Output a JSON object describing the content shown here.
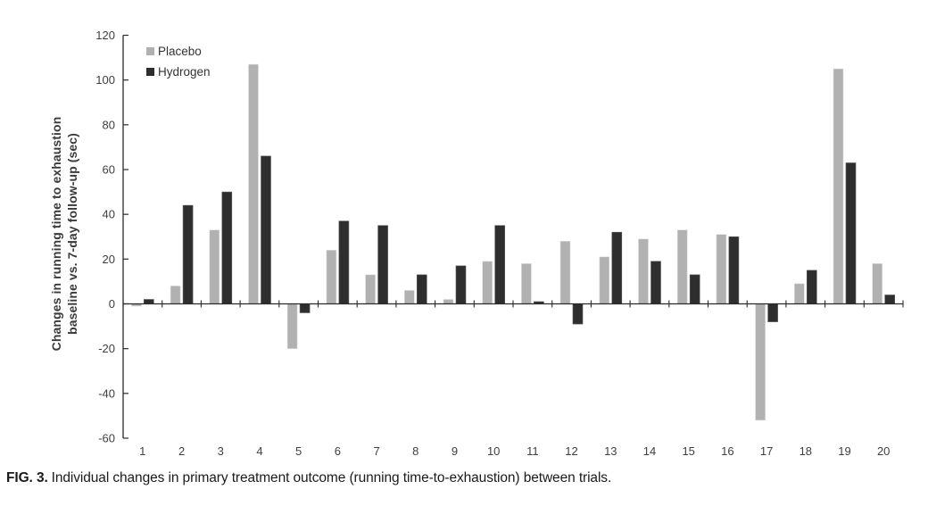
{
  "figure": {
    "caption_label": "FIG. 3.",
    "caption_text": "Individual changes in primary treatment outcome (running time-to-exhaustion) between trials."
  },
  "chart_data": {
    "type": "bar",
    "title": "",
    "xlabel": "",
    "ylabel": "Changes in running time to exhaustion baseline vs. 7-day follow-up (sec)",
    "ylabel_lines": [
      "Changes in running time to exhaustion",
      "baseline vs. 7-day follow-up (sec)"
    ],
    "ylim": [
      -60,
      120
    ],
    "yticks": [
      120,
      100,
      80,
      60,
      40,
      20,
      0,
      -20,
      -40,
      -60
    ],
    "grid": false,
    "legend_position": "top-left",
    "categories": [
      "1",
      "2",
      "3",
      "4",
      "5",
      "6",
      "7",
      "8",
      "9",
      "10",
      "11",
      "12",
      "13",
      "14",
      "15",
      "16",
      "17",
      "18",
      "19",
      "20"
    ],
    "series": [
      {
        "name": "Placebo",
        "color": "#b1b1b1",
        "values": [
          -1,
          8,
          33,
          107,
          -20,
          24,
          13,
          6,
          2,
          19,
          18,
          28,
          21,
          29,
          33,
          31,
          -52,
          9,
          105,
          18
        ]
      },
      {
        "name": "Hydrogen",
        "color": "#2e2e2e",
        "values": [
          2,
          44,
          50,
          66,
          -4,
          37,
          35,
          13,
          17,
          35,
          1,
          -9,
          32,
          19,
          13,
          30,
          -8,
          15,
          63,
          4
        ]
      }
    ],
    "axis_color": "#2b2b2b"
  }
}
